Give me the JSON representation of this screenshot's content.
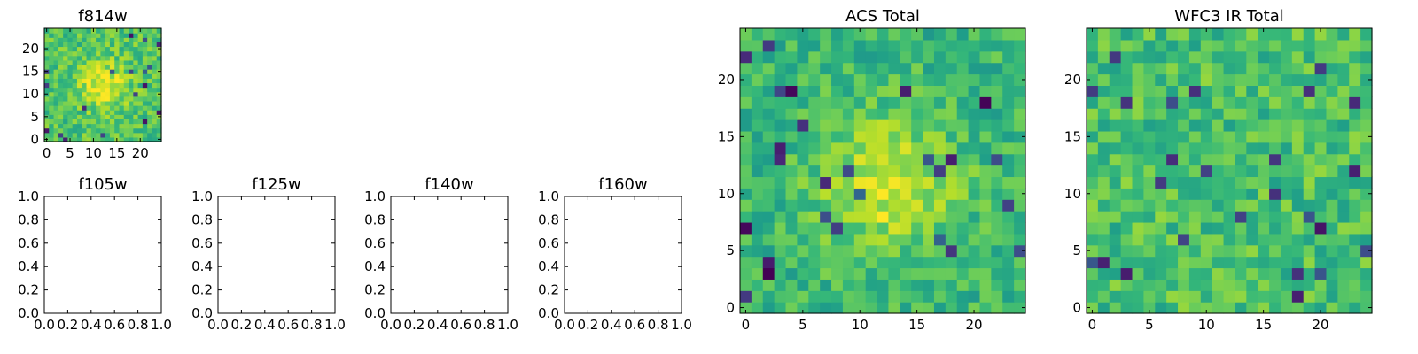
{
  "chart_data": [
    {
      "type": "heatmap",
      "title": "f814w",
      "grid": false,
      "xticks": [
        "0",
        "5",
        "10",
        "15",
        "20"
      ],
      "yticks": [
        "0",
        "5",
        "10",
        "15",
        "20"
      ],
      "xlim": [
        -0.5,
        24.5
      ],
      "ylim": [
        -0.5,
        24.5
      ],
      "grid_size": [
        25,
        25
      ],
      "colormap": "viridis",
      "pattern": "noisy pixel image with a bright peak near (12, 12)"
    },
    {
      "type": "scatter",
      "title": "f105w",
      "grid": false,
      "xticks": [
        "0.0",
        "0.2",
        "0.4",
        "0.6",
        "0.8",
        "1.0"
      ],
      "yticks": [
        "0.0",
        "0.2",
        "0.4",
        "0.6",
        "0.8",
        "1.0"
      ],
      "xlim": [
        0,
        1
      ],
      "ylim": [
        0,
        1
      ],
      "values": []
    },
    {
      "type": "scatter",
      "title": "f125w",
      "grid": false,
      "xticks": [
        "0.0",
        "0.2",
        "0.4",
        "0.6",
        "0.8",
        "1.0"
      ],
      "yticks": [
        "0.0",
        "0.2",
        "0.4",
        "0.6",
        "0.8",
        "1.0"
      ],
      "xlim": [
        0,
        1
      ],
      "ylim": [
        0,
        1
      ],
      "values": []
    },
    {
      "type": "scatter",
      "title": "f140w",
      "grid": false,
      "xticks": [
        "0.0",
        "0.2",
        "0.4",
        "0.6",
        "0.8",
        "1.0"
      ],
      "yticks": [
        "0.0",
        "0.2",
        "0.4",
        "0.6",
        "0.8",
        "1.0"
      ],
      "xlim": [
        0,
        1
      ],
      "ylim": [
        0,
        1
      ],
      "values": []
    },
    {
      "type": "scatter",
      "title": "f160w",
      "grid": false,
      "xticks": [
        "0.0",
        "0.2",
        "0.4",
        "0.6",
        "0.8",
        "1.0"
      ],
      "yticks": [
        "0.0",
        "0.2",
        "0.4",
        "0.6",
        "0.8",
        "1.0"
      ],
      "xlim": [
        0,
        1
      ],
      "ylim": [
        0,
        1
      ],
      "values": []
    },
    {
      "type": "heatmap",
      "title": "ACS Total",
      "grid": false,
      "xticks": [
        "0",
        "5",
        "10",
        "15",
        "20"
      ],
      "yticks": [
        "0",
        "5",
        "10",
        "15",
        "20"
      ],
      "xlim": [
        -0.5,
        24.5
      ],
      "ylim": [
        -0.5,
        24.5
      ],
      "grid_size": [
        25,
        25
      ],
      "colormap": "viridis",
      "pattern": "noisy pixel image with a bright peak near (12, 11)"
    },
    {
      "type": "heatmap",
      "title": "WFC3 IR Total",
      "grid": false,
      "xticks": [
        "0",
        "5",
        "10",
        "15",
        "20"
      ],
      "yticks": [
        "0",
        "5",
        "10",
        "15",
        "20"
      ],
      "xlim": [
        -0.5,
        24.5
      ],
      "ylim": [
        -0.5,
        24.5
      ],
      "grid_size": [
        25,
        25
      ],
      "colormap": "viridis",
      "pattern": "noisy pixel image without a central peak"
    }
  ]
}
